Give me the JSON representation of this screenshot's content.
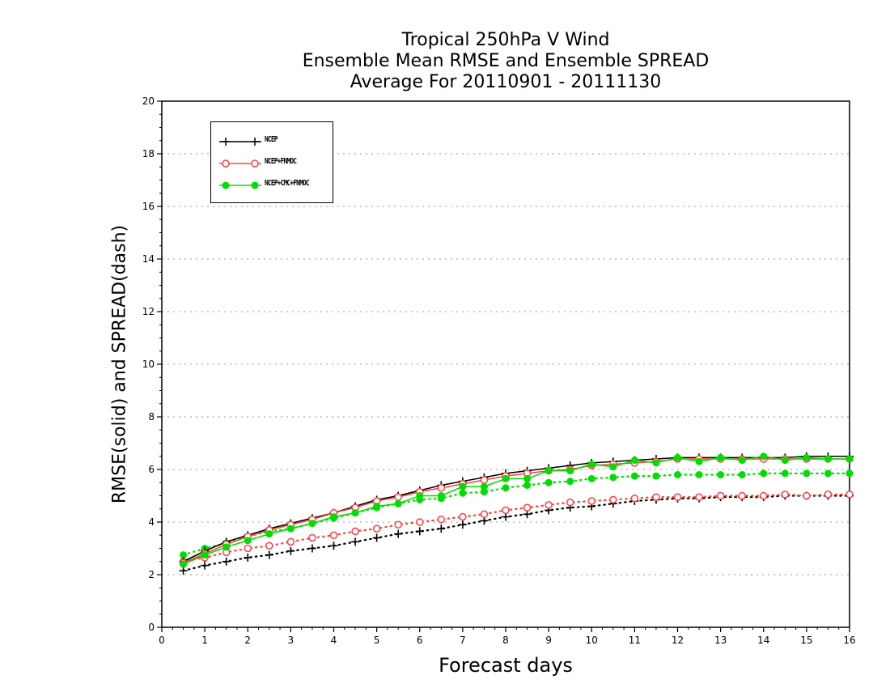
{
  "title": {
    "line1": "Tropical 250hPa V Wind",
    "line2": "Ensemble Mean RMSE and Ensemble SPREAD",
    "line3": "Average For 20110901 - 20111130"
  },
  "chart_data": {
    "type": "line",
    "title": "Tropical 250hPa V Wind / Ensemble Mean RMSE and Ensemble SPREAD / Average For 20110901 - 20111130",
    "xlabel": "Forecast days",
    "ylabel": "RMSE(solid) and SPREAD(dash)",
    "xlim": [
      0,
      16
    ],
    "ylim": [
      0,
      20
    ],
    "xticks": [
      "0",
      "1",
      "2",
      "3",
      "4",
      "5",
      "6",
      "7",
      "8",
      "9",
      "10",
      "11",
      "12",
      "13",
      "14",
      "15",
      "16"
    ],
    "yticks": [
      "0",
      "2",
      "4",
      "6",
      "8",
      "10",
      "12",
      "14",
      "16",
      "18",
      "20"
    ],
    "grid": "horizontal dotted",
    "legend_position": "top-left",
    "x": [
      0.5,
      1,
      1.5,
      2,
      2.5,
      3,
      3.5,
      4,
      4.5,
      5,
      5.5,
      6,
      6.5,
      7,
      7.5,
      8,
      8.5,
      9,
      9.5,
      10,
      10.5,
      11,
      11.5,
      12,
      12.5,
      13,
      13.5,
      14,
      14.5,
      15,
      15.5,
      16
    ],
    "series": [
      {
        "name": "NCEP",
        "kind": "RMSE",
        "style": "solid",
        "color": "#000000",
        "marker": "plus",
        "values": [
          2.5,
          2.9,
          3.25,
          3.5,
          3.75,
          3.95,
          4.15,
          4.35,
          4.6,
          4.85,
          5.0,
          5.2,
          5.4,
          5.55,
          5.7,
          5.85,
          5.95,
          6.05,
          6.15,
          6.25,
          6.3,
          6.35,
          6.4,
          6.45,
          6.45,
          6.45,
          6.45,
          6.45,
          6.45,
          6.5,
          6.5,
          6.5
        ]
      },
      {
        "name": "NCEP+FNMOC",
        "kind": "RMSE",
        "style": "solid",
        "color": "#ff4040",
        "marker": "open-circle",
        "values": [
          2.45,
          2.8,
          3.15,
          3.45,
          3.7,
          3.9,
          4.1,
          4.35,
          4.55,
          4.8,
          4.95,
          5.15,
          5.3,
          5.45,
          5.6,
          5.75,
          5.85,
          5.95,
          6.0,
          6.15,
          6.2,
          6.25,
          6.3,
          6.4,
          6.4,
          6.4,
          6.4,
          6.4,
          6.4,
          6.4,
          6.4,
          6.4
        ]
      },
      {
        "name": "NCEP+CMC+FNMOC",
        "kind": "RMSE",
        "style": "solid",
        "color": "#00dd00",
        "marker": "filled-circle",
        "values": [
          2.4,
          2.75,
          3.05,
          3.3,
          3.55,
          3.75,
          3.95,
          4.2,
          4.35,
          4.6,
          4.7,
          5.0,
          5.0,
          5.35,
          5.35,
          5.65,
          5.65,
          5.95,
          5.95,
          6.2,
          6.1,
          6.35,
          6.25,
          6.45,
          6.3,
          6.45,
          6.35,
          6.5,
          6.35,
          6.45,
          6.4,
          6.4
        ]
      },
      {
        "name": "NCEP",
        "kind": "SPREAD",
        "style": "dotted",
        "color": "#000000",
        "marker": "plus",
        "values": [
          2.15,
          2.35,
          2.5,
          2.65,
          2.75,
          2.9,
          3.0,
          3.1,
          3.25,
          3.4,
          3.55,
          3.65,
          3.75,
          3.9,
          4.05,
          4.2,
          4.3,
          4.45,
          4.55,
          4.6,
          4.7,
          4.8,
          4.85,
          4.9,
          4.9,
          4.95,
          4.95,
          4.95,
          5.0,
          5.0,
          5.0,
          5.0
        ]
      },
      {
        "name": "NCEP+FNMOC",
        "kind": "SPREAD",
        "style": "dotted",
        "color": "#ff4040",
        "marker": "open-circle",
        "values": [
          2.5,
          2.65,
          2.85,
          3.0,
          3.1,
          3.25,
          3.4,
          3.5,
          3.65,
          3.75,
          3.9,
          4.0,
          4.1,
          4.2,
          4.3,
          4.45,
          4.55,
          4.65,
          4.75,
          4.8,
          4.85,
          4.9,
          4.95,
          4.95,
          4.95,
          5.0,
          5.0,
          5.0,
          5.05,
          5.0,
          5.05,
          5.05
        ]
      },
      {
        "name": "NCEP+CMC+FNMOC",
        "kind": "SPREAD",
        "style": "dotted",
        "color": "#00dd00",
        "marker": "filled-circle",
        "values": [
          2.75,
          3.0,
          3.2,
          3.45,
          3.65,
          3.75,
          3.95,
          4.15,
          4.35,
          4.55,
          4.7,
          4.85,
          4.9,
          5.1,
          5.15,
          5.3,
          5.4,
          5.5,
          5.55,
          5.65,
          5.7,
          5.75,
          5.75,
          5.8,
          5.8,
          5.8,
          5.8,
          5.85,
          5.85,
          5.85,
          5.85,
          5.85
        ]
      }
    ]
  },
  "legend": {
    "items": [
      {
        "label": "NCEP",
        "color": "#000000",
        "marker": "plus"
      },
      {
        "label": "NCEP+FNMOC",
        "color": "#ff4040",
        "marker": "open-circle"
      },
      {
        "label": "NCEP+CMC+FNMOC",
        "color": "#00dd00",
        "marker": "filled-circle"
      }
    ]
  }
}
